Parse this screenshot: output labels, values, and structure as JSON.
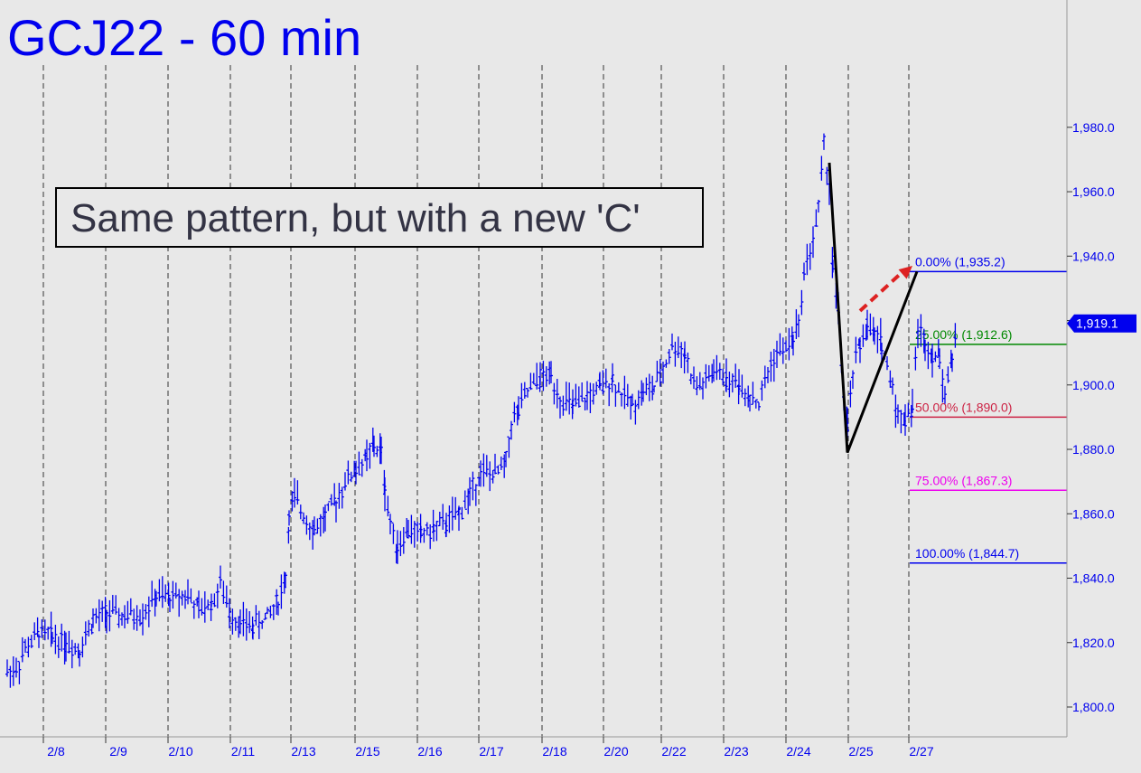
{
  "chart_data": {
    "type": "ohlc",
    "title": "GCJ22 - 60 min",
    "annotation": "Same pattern, but with a new 'C'",
    "ylim": [
      1790,
      1990
    ],
    "y_ticks": [
      1800,
      1820,
      1840,
      1860,
      1880,
      1900,
      1920,
      1940,
      1960,
      1980
    ],
    "y_tick_labels": [
      "1,800.0",
      "1,820.0",
      "1,840.0",
      "1,860.0",
      "1,880.0",
      "1,900.0",
      "1,920.0",
      "1,940.0",
      "1,960.0",
      "1,980.0"
    ],
    "x_tick_labels": [
      "2/8",
      "2/9",
      "2/10",
      "2/11",
      "2/13",
      "2/15",
      "2/16",
      "2/17",
      "2/18",
      "2/20",
      "2/22",
      "2/23",
      "2/24",
      "2/25",
      "2/27"
    ],
    "last_price": {
      "value": 1919.1,
      "label": "1,919.1",
      "color": "#0000ee"
    },
    "colors": {
      "bars": "#0000ee",
      "background": "#e8e8e8",
      "axis_text": "#0000ee",
      "title": "#0000ee",
      "annotation_text": "#333344"
    },
    "price_path": [
      [
        0,
        1811
      ],
      [
        10,
        1812
      ],
      [
        20,
        1818
      ],
      [
        35,
        1823
      ],
      [
        50,
        1822
      ],
      [
        65,
        1820
      ],
      [
        80,
        1818
      ],
      [
        95,
        1827
      ],
      [
        110,
        1829
      ],
      [
        130,
        1828
      ],
      [
        150,
        1829
      ],
      [
        165,
        1834
      ],
      [
        180,
        1834
      ],
      [
        200,
        1835
      ],
      [
        212,
        1830
      ],
      [
        226,
        1832
      ],
      [
        236,
        1838
      ],
      [
        246,
        1830
      ],
      [
        258,
        1826
      ],
      [
        272,
        1825
      ],
      [
        288,
        1828
      ],
      [
        300,
        1833
      ],
      [
        308,
        1840
      ],
      [
        312,
        1858
      ],
      [
        318,
        1865
      ],
      [
        328,
        1860
      ],
      [
        340,
        1855
      ],
      [
        352,
        1859
      ],
      [
        364,
        1864
      ],
      [
        374,
        1870
      ],
      [
        386,
        1874
      ],
      [
        398,
        1877
      ],
      [
        406,
        1881
      ],
      [
        414,
        1879
      ],
      [
        418,
        1868
      ],
      [
        424,
        1857
      ],
      [
        432,
        1850
      ],
      [
        444,
        1855
      ],
      [
        458,
        1854
      ],
      [
        472,
        1855
      ],
      [
        486,
        1857
      ],
      [
        500,
        1860
      ],
      [
        512,
        1866
      ],
      [
        524,
        1873
      ],
      [
        540,
        1872
      ],
      [
        552,
        1876
      ],
      [
        558,
        1888
      ],
      [
        566,
        1892
      ],
      [
        576,
        1898
      ],
      [
        590,
        1902
      ],
      [
        602,
        1903
      ],
      [
        612,
        1896
      ],
      [
        626,
        1893
      ],
      [
        642,
        1896
      ],
      [
        656,
        1899
      ],
      [
        670,
        1902
      ],
      [
        680,
        1897
      ],
      [
        692,
        1894
      ],
      [
        704,
        1898
      ],
      [
        716,
        1899
      ],
      [
        726,
        1905
      ],
      [
        736,
        1912
      ],
      [
        750,
        1910
      ],
      [
        760,
        1900
      ],
      [
        770,
        1900
      ],
      [
        782,
        1904
      ],
      [
        796,
        1902
      ],
      [
        810,
        1900
      ],
      [
        822,
        1897
      ],
      [
        832,
        1894
      ],
      [
        842,
        1904
      ],
      [
        852,
        1910
      ],
      [
        862,
        1911
      ],
      [
        870,
        1915
      ],
      [
        876,
        1918
      ],
      [
        882,
        1935
      ],
      [
        892,
        1945
      ],
      [
        898,
        1955
      ],
      [
        904,
        1974
      ],
      [
        910,
        1962
      ],
      [
        914,
        1935
      ],
      [
        920,
        1922
      ],
      [
        926,
        1896
      ],
      [
        930,
        1886
      ],
      [
        936,
        1904
      ],
      [
        944,
        1913
      ],
      [
        952,
        1918
      ],
      [
        960,
        1915
      ],
      [
        968,
        1913
      ],
      [
        974,
        1906
      ],
      [
        980,
        1900
      ],
      [
        986,
        1890
      ],
      [
        994,
        1890
      ],
      [
        1002,
        1893
      ],
      [
        1008,
        1918
      ],
      [
        1016,
        1913
      ],
      [
        1024,
        1910
      ],
      [
        1032,
        1908
      ],
      [
        1038,
        1898
      ],
      [
        1046,
        1908
      ],
      [
        1052,
        1919
      ]
    ],
    "fib_levels": [
      {
        "label": "0.00% (1,935.2)",
        "value": 1935.2,
        "color": "#0000ee"
      },
      {
        "label": "25.00% (1,912.6)",
        "value": 1912.6,
        "color": "#008800"
      },
      {
        "label": "50.00% (1,890.0)",
        "value": 1890.0,
        "color": "#cc2244"
      },
      {
        "label": "75.00% (1,867.3)",
        "value": 1867.3,
        "color": "#ee00ee"
      },
      {
        "label": "100.00% (1,844.7)",
        "value": 1844.7,
        "color": "#0000ee"
      }
    ],
    "pattern_line": {
      "color": "#000000",
      "points": [
        [
          910,
          1969
        ],
        [
          930,
          1879
        ],
        [
          1007,
          1935.2
        ]
      ]
    },
    "projection_arrow": {
      "color": "#dd2222",
      "from": [
        944,
        1923
      ],
      "to": [
        1002,
        1937
      ]
    }
  }
}
